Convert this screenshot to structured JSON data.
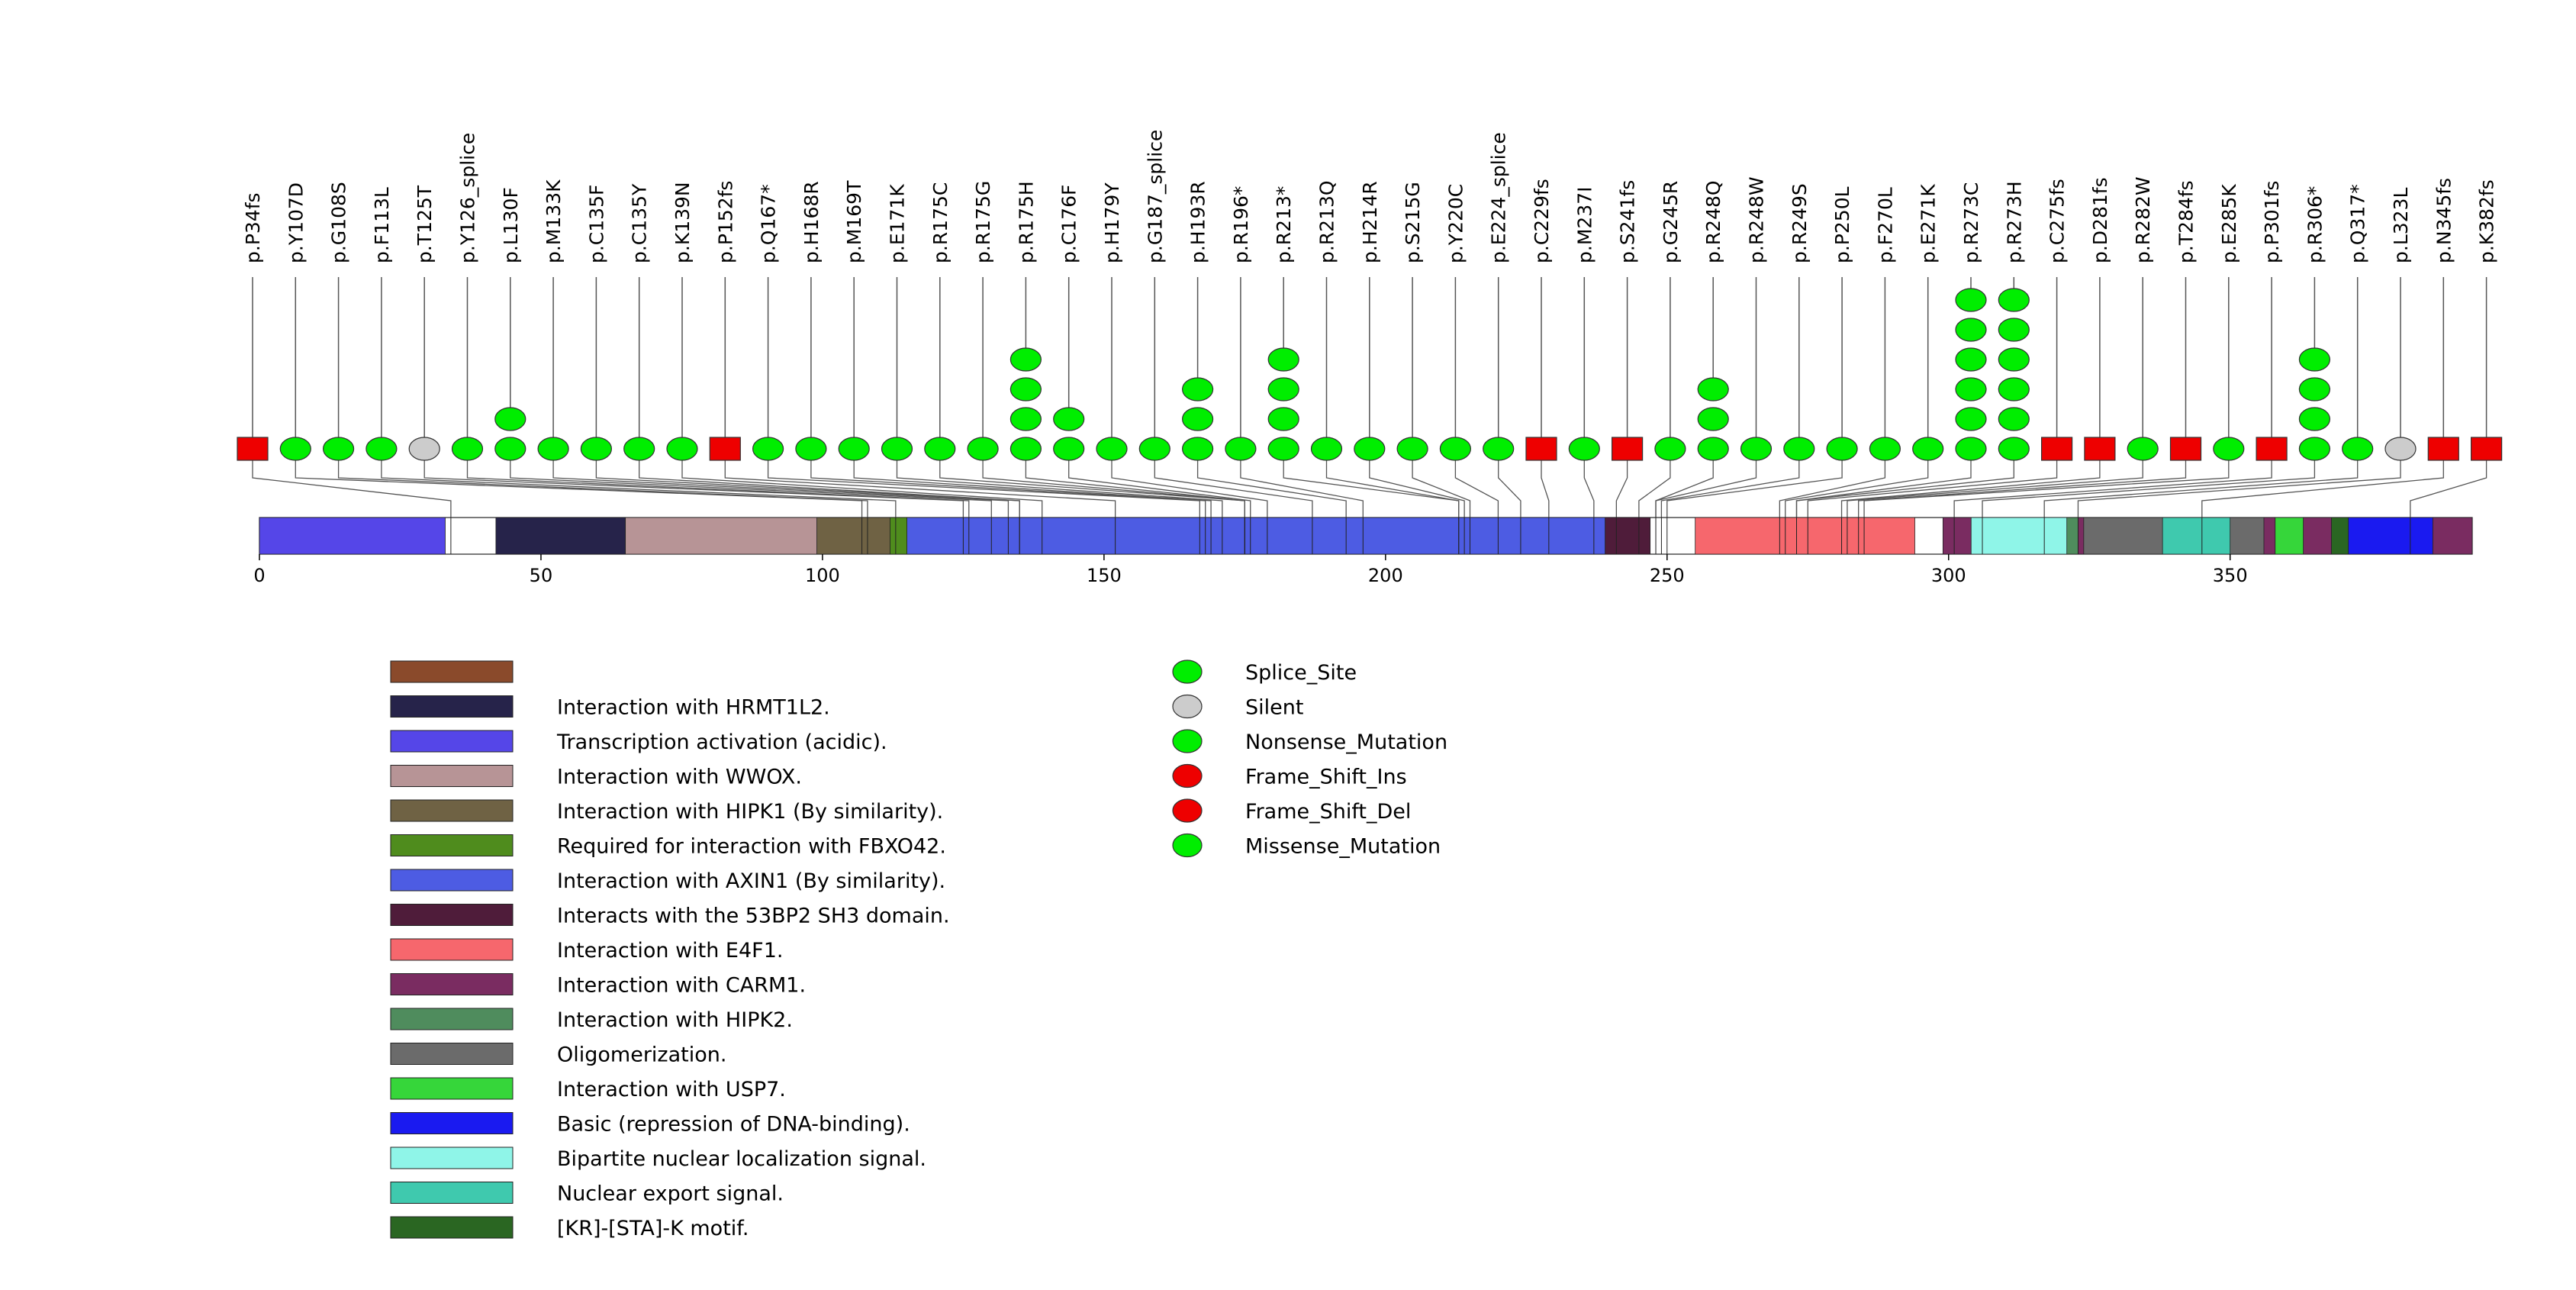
{
  "chart_data": {
    "type": "lollipop",
    "protein_length": 393,
    "x_ticks": [
      0,
      50,
      100,
      150,
      200,
      250,
      300,
      350
    ],
    "mutations": [
      {
        "label": "p.P34fs",
        "pos": 34,
        "count": 1,
        "type": "Frame_Shift_Del"
      },
      {
        "label": "p.Y107D",
        "pos": 107,
        "count": 1,
        "type": "Missense_Mutation"
      },
      {
        "label": "p.G108S",
        "pos": 108,
        "count": 1,
        "type": "Missense_Mutation"
      },
      {
        "label": "p.F113L",
        "pos": 113,
        "count": 1,
        "type": "Missense_Mutation"
      },
      {
        "label": "p.T125T",
        "pos": 125,
        "count": 1,
        "type": "Silent"
      },
      {
        "label": "p.Y126_splice",
        "pos": 126,
        "count": 1,
        "type": "Splice_Site"
      },
      {
        "label": "p.L130F",
        "pos": 130,
        "count": 2,
        "type": "Missense_Mutation"
      },
      {
        "label": "p.M133K",
        "pos": 133,
        "count": 1,
        "type": "Missense_Mutation"
      },
      {
        "label": "p.C135F",
        "pos": 135,
        "count": 1,
        "type": "Missense_Mutation"
      },
      {
        "label": "p.C135Y",
        "pos": 135,
        "count": 1,
        "type": "Missense_Mutation"
      },
      {
        "label": "p.K139N",
        "pos": 139,
        "count": 1,
        "type": "Missense_Mutation"
      },
      {
        "label": "p.P152fs",
        "pos": 152,
        "count": 1,
        "type": "Frame_Shift_Del"
      },
      {
        "label": "p.Q167*",
        "pos": 167,
        "count": 1,
        "type": "Nonsense_Mutation"
      },
      {
        "label": "p.H168R",
        "pos": 168,
        "count": 1,
        "type": "Missense_Mutation"
      },
      {
        "label": "p.M169T",
        "pos": 169,
        "count": 1,
        "type": "Missense_Mutation"
      },
      {
        "label": "p.E171K",
        "pos": 171,
        "count": 1,
        "type": "Missense_Mutation"
      },
      {
        "label": "p.R175C",
        "pos": 175,
        "count": 1,
        "type": "Missense_Mutation"
      },
      {
        "label": "p.R175G",
        "pos": 175,
        "count": 1,
        "type": "Missense_Mutation"
      },
      {
        "label": "p.R175H",
        "pos": 175,
        "count": 4,
        "type": "Missense_Mutation"
      },
      {
        "label": "p.C176F",
        "pos": 176,
        "count": 2,
        "type": "Missense_Mutation"
      },
      {
        "label": "p.H179Y",
        "pos": 179,
        "count": 1,
        "type": "Missense_Mutation"
      },
      {
        "label": "p.G187_splice",
        "pos": 187,
        "count": 1,
        "type": "Splice_Site"
      },
      {
        "label": "p.H193R",
        "pos": 193,
        "count": 3,
        "type": "Missense_Mutation"
      },
      {
        "label": "p.R196*",
        "pos": 196,
        "count": 1,
        "type": "Nonsense_Mutation"
      },
      {
        "label": "p.R213*",
        "pos": 213,
        "count": 4,
        "type": "Nonsense_Mutation"
      },
      {
        "label": "p.R213Q",
        "pos": 213,
        "count": 1,
        "type": "Missense_Mutation"
      },
      {
        "label": "p.H214R",
        "pos": 214,
        "count": 1,
        "type": "Missense_Mutation"
      },
      {
        "label": "p.S215G",
        "pos": 215,
        "count": 1,
        "type": "Missense_Mutation"
      },
      {
        "label": "p.Y220C",
        "pos": 220,
        "count": 1,
        "type": "Missense_Mutation"
      },
      {
        "label": "p.E224_splice",
        "pos": 224,
        "count": 1,
        "type": "Splice_Site"
      },
      {
        "label": "p.C229fs",
        "pos": 229,
        "count": 1,
        "type": "Frame_Shift_Del"
      },
      {
        "label": "p.M237I",
        "pos": 237,
        "count": 1,
        "type": "Missense_Mutation"
      },
      {
        "label": "p.S241fs",
        "pos": 241,
        "count": 1,
        "type": "Frame_Shift_Del"
      },
      {
        "label": "p.G245R",
        "pos": 245,
        "count": 1,
        "type": "Missense_Mutation"
      },
      {
        "label": "p.R248Q",
        "pos": 248,
        "count": 3,
        "type": "Missense_Mutation"
      },
      {
        "label": "p.R248W",
        "pos": 248,
        "count": 1,
        "type": "Missense_Mutation"
      },
      {
        "label": "p.R249S",
        "pos": 249,
        "count": 1,
        "type": "Missense_Mutation"
      },
      {
        "label": "p.P250L",
        "pos": 250,
        "count": 1,
        "type": "Missense_Mutation"
      },
      {
        "label": "p.F270L",
        "pos": 270,
        "count": 1,
        "type": "Missense_Mutation"
      },
      {
        "label": "p.E271K",
        "pos": 271,
        "count": 1,
        "type": "Missense_Mutation"
      },
      {
        "label": "p.R273C",
        "pos": 273,
        "count": 6,
        "type": "Missense_Mutation"
      },
      {
        "label": "p.R273H",
        "pos": 273,
        "count": 6,
        "type": "Missense_Mutation"
      },
      {
        "label": "p.C275fs",
        "pos": 275,
        "count": 1,
        "type": "Frame_Shift_Del"
      },
      {
        "label": "p.D281fs",
        "pos": 281,
        "count": 1,
        "type": "Frame_Shift_Del"
      },
      {
        "label": "p.R282W",
        "pos": 282,
        "count": 1,
        "type": "Missense_Mutation"
      },
      {
        "label": "p.T284fs",
        "pos": 284,
        "count": 1,
        "type": "Frame_Shift_Del"
      },
      {
        "label": "p.E285K",
        "pos": 285,
        "count": 1,
        "type": "Missense_Mutation"
      },
      {
        "label": "p.P301fs",
        "pos": 301,
        "count": 1,
        "type": "Frame_Shift_Del"
      },
      {
        "label": "p.R306*",
        "pos": 306,
        "count": 4,
        "type": "Nonsense_Mutation"
      },
      {
        "label": "p.Q317*",
        "pos": 317,
        "count": 1,
        "type": "Nonsense_Mutation"
      },
      {
        "label": "p.L323L",
        "pos": 323,
        "count": 1,
        "type": "Silent"
      },
      {
        "label": "p.N345fs",
        "pos": 345,
        "count": 1,
        "type": "Frame_Shift_Del"
      },
      {
        "label": "p.K382fs",
        "pos": 382,
        "count": 1,
        "type": "Frame_Shift_Del"
      }
    ],
    "domains": [
      {
        "name": "Transcription activation (acidic).",
        "start": 1,
        "end": 33,
        "color": "#5546e8"
      },
      {
        "name": "Interaction with HRMT1L2.",
        "start": 43,
        "end": 65,
        "color": "#26234a"
      },
      {
        "name": "Interaction with WWOX.",
        "start": 66,
        "end": 100,
        "color": "#b79496"
      },
      {
        "name": "Interaction with HIPK1 (By similarity).",
        "start": 100,
        "end": 112,
        "color": "#6f6244"
      },
      {
        "name": "Required for interaction with FBXO42.",
        "start": 113,
        "end": 116,
        "color": "#4f8c1d"
      },
      {
        "name": "Interaction with AXIN1 (By similarity).",
        "start": 116,
        "end": 240,
        "color": "#4d5ce3"
      },
      {
        "name": "Interacts with the 53BP2 SH3 domain.",
        "start": 240,
        "end": 247,
        "color": "#4f1c3a"
      },
      {
        "name": "Interaction with E4F1.",
        "start": 256,
        "end": 294,
        "color": "#f6676d"
      },
      {
        "name": "Interaction with CARM1.",
        "start": 300,
        "end": 393,
        "color": "#7a2c61"
      },
      {
        "name": "Interaction with HIPK2.",
        "start": 319,
        "end": 323,
        "color": "#4f8c5d"
      },
      {
        "name": "Oligomerization.",
        "start": 325,
        "end": 356,
        "color": "#6b6b6b"
      },
      {
        "name": "Interaction with USP7.",
        "start": 359,
        "end": 363,
        "color": "#36d63a"
      },
      {
        "name": "Basic (repression of DNA-binding).",
        "start": 370,
        "end": 386,
        "color": "#1a1af0"
      },
      {
        "name": "Bipartite nuclear localization signal.",
        "start": 305,
        "end": 321,
        "color": "#8ff5e8"
      },
      {
        "name": "Nuclear export signal.",
        "start": 339,
        "end": 350,
        "color": "#3fc9ae"
      },
      {
        "name": "[KR]-[STA]-K motif.",
        "start": 369,
        "end": 371,
        "color": "#2a6622"
      }
    ],
    "domain_legend": [
      {
        "name": "",
        "color": "#8a4a2b"
      },
      {
        "name": "Interaction with HRMT1L2.",
        "color": "#26234a"
      },
      {
        "name": "Transcription activation (acidic).",
        "color": "#5546e8"
      },
      {
        "name": "Interaction with WWOX.",
        "color": "#b79496"
      },
      {
        "name": "Interaction with HIPK1 (By similarity).",
        "color": "#6f6244"
      },
      {
        "name": "Required for interaction with FBXO42.",
        "color": "#4f8c1d"
      },
      {
        "name": "Interaction with AXIN1 (By similarity).",
        "color": "#4d5ce3"
      },
      {
        "name": "Interacts with the 53BP2 SH3 domain.",
        "color": "#4f1c3a"
      },
      {
        "name": "Interaction with E4F1.",
        "color": "#f6676d"
      },
      {
        "name": "Interaction with CARM1.",
        "color": "#7a2c61"
      },
      {
        "name": "Interaction with HIPK2.",
        "color": "#4f8c5d"
      },
      {
        "name": "Oligomerization.",
        "color": "#6b6b6b"
      },
      {
        "name": "Interaction with USP7.",
        "color": "#36d63a"
      },
      {
        "name": "Basic (repression of DNA-binding).",
        "color": "#1a1af0"
      },
      {
        "name": "Bipartite nuclear localization signal.",
        "color": "#8ff5e8"
      },
      {
        "name": "Nuclear export signal.",
        "color": "#3fc9ae"
      },
      {
        "name": "[KR]-[STA]-K motif.",
        "color": "#2a6622"
      }
    ],
    "mutation_legend": [
      {
        "name": "Splice_Site",
        "color": "#00ee00"
      },
      {
        "name": "Silent",
        "color": "#cccccc"
      },
      {
        "name": "Nonsense_Mutation",
        "color": "#00ee00"
      },
      {
        "name": "Frame_Shift_Ins",
        "color": "#ee0000"
      },
      {
        "name": "Frame_Shift_Del",
        "color": "#ee0000"
      },
      {
        "name": "Missense_Mutation",
        "color": "#00ee00"
      }
    ],
    "colors": {
      "green": "#00ee00",
      "red": "#ee0000",
      "grey": "#cccccc",
      "line": "#555555"
    }
  }
}
